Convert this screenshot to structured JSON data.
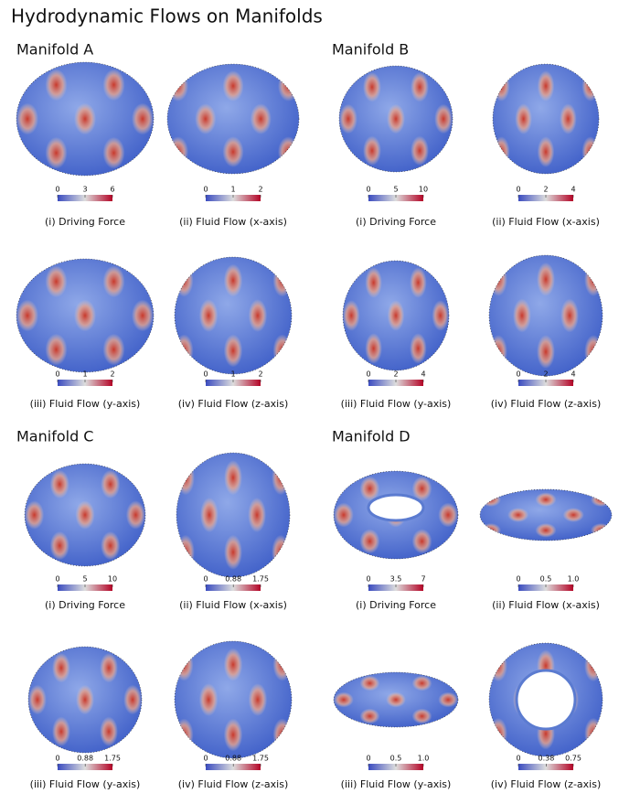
{
  "title": "Hydrodynamic Flows on Manifolds",
  "manifolds": [
    {
      "name": "Manifold A",
      "panels": [
        {
          "caption": "(i) Driving Force",
          "colorbar_ticks": [
            0,
            3,
            6
          ]
        },
        {
          "caption": "(ii) Fluid Flow (x-axis)",
          "colorbar_ticks": [
            0,
            1,
            2
          ]
        },
        {
          "caption": "(iii) Fluid Flow (y-axis)",
          "colorbar_ticks": [
            0,
            1,
            2
          ]
        },
        {
          "caption": "(iv) Fluid Flow (z-axis)",
          "colorbar_ticks": [
            0,
            1,
            2
          ]
        }
      ]
    },
    {
      "name": "Manifold B",
      "panels": [
        {
          "caption": "(i) Driving Force",
          "colorbar_ticks": [
            0,
            5,
            10
          ]
        },
        {
          "caption": "(ii) Fluid Flow (x-axis)",
          "colorbar_ticks": [
            0,
            2,
            4
          ]
        },
        {
          "caption": "(iii) Fluid Flow (y-axis)",
          "colorbar_ticks": [
            0,
            2,
            4
          ]
        },
        {
          "caption": "(iv) Fluid Flow (z-axis)",
          "colorbar_ticks": [
            0,
            2,
            4
          ]
        }
      ]
    },
    {
      "name": "Manifold C",
      "panels": [
        {
          "caption": "(i) Driving Force",
          "colorbar_ticks": [
            0,
            5,
            10
          ]
        },
        {
          "caption": "(ii) Fluid Flow (x-axis)",
          "colorbar_ticks": [
            0,
            0.88,
            1.75
          ]
        },
        {
          "caption": "(iii) Fluid Flow (y-axis)",
          "colorbar_ticks": [
            0,
            0.88,
            1.75
          ]
        },
        {
          "caption": "(iv) Fluid Flow (z-axis)",
          "colorbar_ticks": [
            0,
            0.88,
            1.75
          ]
        }
      ]
    },
    {
      "name": "Manifold D",
      "panels": [
        {
          "caption": "(i) Driving Force",
          "colorbar_ticks": [
            0,
            3.5,
            7
          ]
        },
        {
          "caption": "(ii) Fluid Flow (x-axis)",
          "colorbar_ticks": [
            0,
            0.5,
            {
              "value": 1,
              "label": "1.0"
            }
          ]
        },
        {
          "caption": "(iii) Fluid Flow (y-axis)",
          "colorbar_ticks": [
            0,
            0.5,
            {
              "value": 1,
              "label": "1.0"
            }
          ]
        },
        {
          "caption": "(iv) Fluid Flow (z-axis)",
          "colorbar_ticks": [
            0,
            0.38,
            0.75
          ]
        }
      ]
    }
  ]
}
